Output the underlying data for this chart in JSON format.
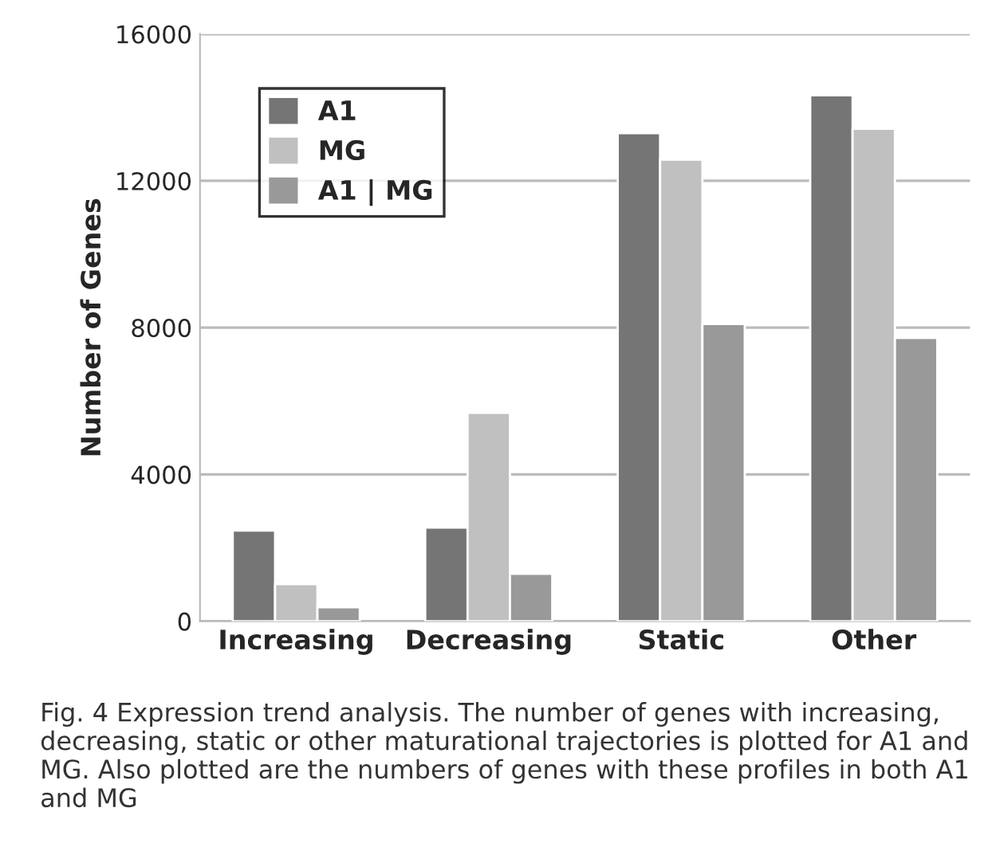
{
  "chart_data": {
    "type": "bar",
    "ylabel": "Number of Genes",
    "categories": [
      "Increasing",
      "Decreasing",
      "Static",
      "Other"
    ],
    "series": [
      {
        "name": "A1",
        "color": "#757575",
        "values": [
          2470,
          2550,
          13300,
          14330
        ]
      },
      {
        "name": "MG",
        "color": "#c0c0c0",
        "values": [
          1010,
          5680,
          12580,
          13420
        ]
      },
      {
        "name": "A1 | MG",
        "color": "#999999",
        "values": [
          380,
          1290,
          8100,
          7720
        ]
      }
    ],
    "ylim": [
      0,
      16000
    ],
    "yticks": [
      0,
      4000,
      8000,
      12000,
      16000
    ],
    "grid": "y",
    "legend": "top left",
    "annotations": [
      "Fig. 4 Expression trend analysis. The number of genes with increasing, decreasing, static or other maturational trajectories is plotted for A1 and MG. Also plotted are the numbers of genes with these profiles in both A1 and MG"
    ]
  }
}
